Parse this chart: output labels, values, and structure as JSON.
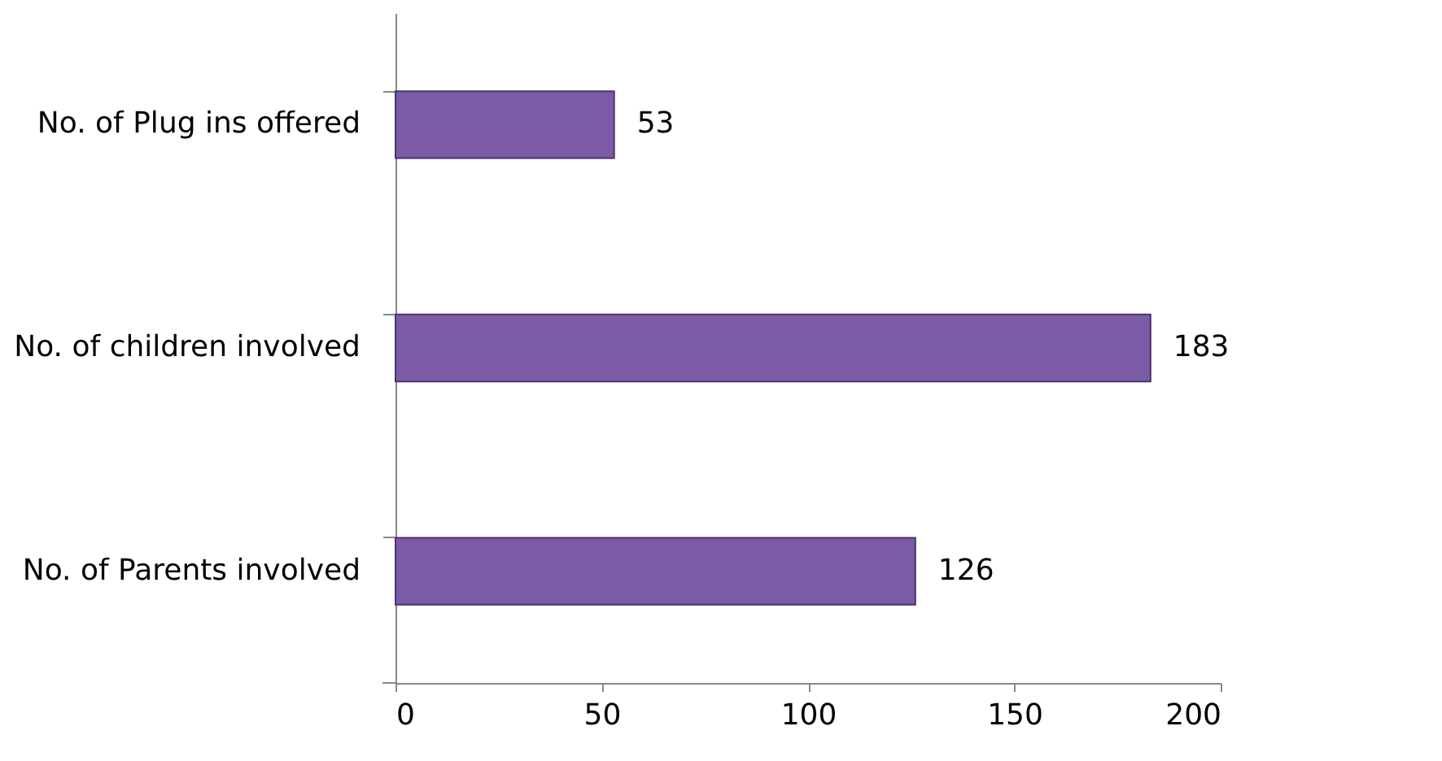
{
  "chart_data": {
    "type": "bar",
    "orientation": "horizontal",
    "categories": [
      "No. of Plug ins offered",
      "No. of children involved",
      "No. of Parents involved"
    ],
    "values": [
      53,
      183,
      126
    ],
    "color": "#7b5aa6",
    "data_labels": true,
    "xlim": [
      0,
      200
    ],
    "xticks": [
      0,
      50,
      100,
      150,
      200
    ],
    "grid": false,
    "legend": false
  }
}
